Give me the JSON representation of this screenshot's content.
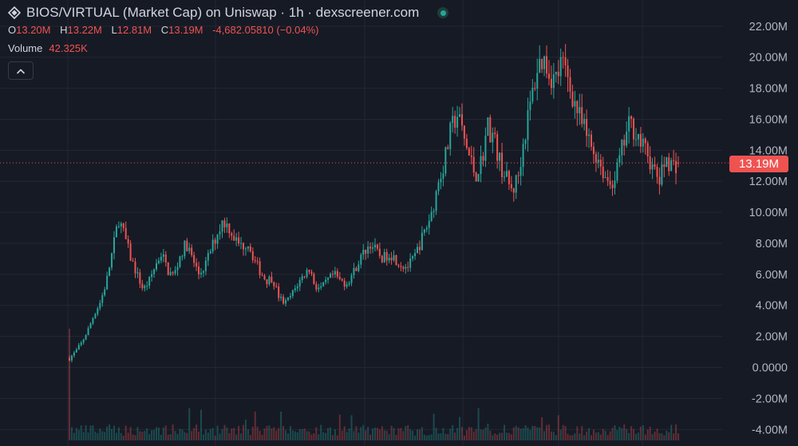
{
  "header": {
    "title": "BIOS/VIRTUAL (Market Cap) on Uniswap · 1h · dexscreener.com",
    "logo_icon": "diamond-logo-icon",
    "status_icon": "live-dot-icon",
    "status_color": "#26a69a"
  },
  "legend": {
    "open_label": "O",
    "open_value": "13.20M",
    "high_label": "H",
    "high_value": "13.22M",
    "low_label": "L",
    "low_value": "12.81M",
    "close_label": "C",
    "close_value": "13.19M",
    "change": "-4,682.05810 (−0.04%)",
    "volume_label": "Volume",
    "volume_value": "42.325K"
  },
  "controls": {
    "collapse_icon": "chevron-up-icon"
  },
  "current_price_label": "13.19M",
  "colors": {
    "background": "#161a25",
    "grid": "#232734",
    "up": "#26a69a",
    "down": "#ef5350",
    "axis_text": "#b2b5be"
  },
  "chart_data": {
    "type": "candlestick",
    "title": "BIOS/VIRTUAL (Market Cap) on Uniswap · 1h · dexscreener.com",
    "y_axis": {
      "position": "right",
      "tick_labels": [
        "22.00M",
        "20.00M",
        "18.00M",
        "16.00M",
        "14.00M",
        "12.00M",
        "10.00M",
        "8.00M",
        "6.00M",
        "4.00M",
        "2.00M",
        "0.0000",
        "-2.00M",
        "-4.00M"
      ],
      "tick_values": [
        22,
        20,
        18,
        16,
        14,
        12,
        10,
        8,
        6,
        4,
        2,
        0,
        -2,
        -4
      ],
      "unit": "M",
      "range": [
        -4.4,
        23.3
      ]
    },
    "grid": true,
    "current_price": 13.19,
    "last_candle": {
      "open": 13.2,
      "high": 13.22,
      "low": 12.81,
      "close": 13.19
    },
    "volume_last": "42.325K",
    "price_path_M": [
      0.6,
      1.0,
      1.6,
      2.4,
      3.4,
      4.2,
      5.5,
      7.5,
      9.6,
      8.4,
      7.0,
      6.0,
      5.0,
      5.6,
      6.6,
      7.4,
      6.2,
      5.9,
      7.2,
      8.0,
      7.0,
      6.0,
      6.5,
      7.6,
      8.6,
      9.5,
      9.0,
      8.2,
      7.8,
      8.1,
      7.0,
      6.2,
      5.6,
      5.8,
      4.6,
      4.1,
      4.6,
      5.3,
      5.9,
      6.4,
      5.2,
      5.1,
      5.6,
      6.0,
      5.6,
      5.4,
      6.0,
      6.8,
      7.5,
      8.0,
      7.4,
      7.0,
      7.4,
      7.0,
      6.6,
      6.5,
      7.0,
      8.0,
      9.0,
      10.1,
      12.0,
      13.3,
      15.2,
      16.4,
      15.0,
      13.6,
      12.4,
      13.3,
      15.6,
      14.8,
      13.2,
      12.2,
      11.3,
      12.4,
      15.0,
      17.0,
      19.2,
      20.0,
      19.1,
      18.5,
      19.6,
      18.7,
      17.3,
      16.0,
      15.0,
      14.1,
      13.5,
      12.4,
      11.8,
      12.6,
      14.3,
      15.6,
      15.4,
      14.3,
      13.8,
      12.6,
      12.0,
      13.6,
      13.0,
      13.19
    ]
  }
}
